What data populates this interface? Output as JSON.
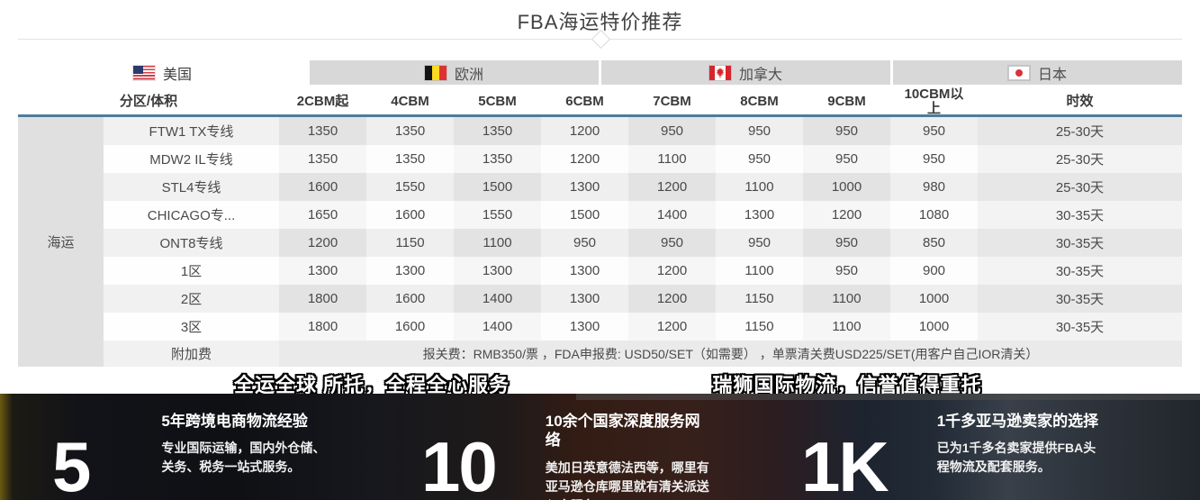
{
  "title": "FBA海运特价推荐",
  "colors": {
    "accent_blue": "#4d7d9c",
    "tab_inactive": "#d8d8d8",
    "group_cell_gray": "#e0e0e0",
    "band_background": "#14161c"
  },
  "tabs": [
    {
      "label": "美国",
      "flag": "us",
      "flag_name": "us-flag-icon",
      "active": true
    },
    {
      "label": "欧洲",
      "flag": "be",
      "flag_name": "belgium-flag-icon",
      "active": false
    },
    {
      "label": "加拿大",
      "flag": "ca",
      "flag_name": "canada-flag-icon",
      "active": false
    },
    {
      "label": "日本",
      "flag": "jp",
      "flag_name": "japan-flag-icon",
      "active": false
    }
  ],
  "table": {
    "group_label": "海运",
    "columns": [
      "分区/体积",
      "2CBM起",
      "4CBM",
      "5CBM",
      "6CBM",
      "7CBM",
      "8CBM",
      "9CBM",
      "10CBM以上",
      "时效"
    ],
    "rows": [
      {
        "label": "FTW1 TX专线",
        "prices": [
          "1350",
          "1350",
          "1350",
          "1200",
          "950",
          "950",
          "950",
          "950"
        ],
        "timing": "25-30天"
      },
      {
        "label": "MDW2 IL专线",
        "prices": [
          "1350",
          "1350",
          "1350",
          "1200",
          "1100",
          "950",
          "950",
          "950"
        ],
        "timing": "25-30天"
      },
      {
        "label": "STL4专线",
        "prices": [
          "1600",
          "1550",
          "1500",
          "1300",
          "1200",
          "1100",
          "1000",
          "980"
        ],
        "timing": "25-30天"
      },
      {
        "label": "CHICAGO专...",
        "prices": [
          "1650",
          "1600",
          "1550",
          "1500",
          "1400",
          "1300",
          "1200",
          "1080"
        ],
        "timing": "30-35天"
      },
      {
        "label": "ONT8专线",
        "prices": [
          "1200",
          "1150",
          "1100",
          "950",
          "950",
          "950",
          "950",
          "850"
        ],
        "timing": "30-35天"
      },
      {
        "label": "1区",
        "prices": [
          "1300",
          "1300",
          "1300",
          "1300",
          "1200",
          "1100",
          "950",
          "900"
        ],
        "timing": "30-35天"
      },
      {
        "label": "2区",
        "prices": [
          "1800",
          "1600",
          "1400",
          "1300",
          "1200",
          "1150",
          "1100",
          "1000"
        ],
        "timing": "30-35天"
      },
      {
        "label": "3区",
        "prices": [
          "1800",
          "1600",
          "1400",
          "1300",
          "1200",
          "1150",
          "1100",
          "1000"
        ],
        "timing": "30-35天"
      }
    ],
    "surcharge": {
      "label": "附加费",
      "text": "报关费：RMB350/票 ，FDA申报费: USD50/SET（如需要） ，单票清关费USD225/SET(用客户自己IOR清关）"
    }
  },
  "slogans": {
    "left": "全运全球 所托，全程全心服务",
    "right": "瑞狮国际物流，信誉值得重托"
  },
  "stats": [
    {
      "number": "5",
      "heading": "5年跨境电商物流经验",
      "body": "专业国际运输，国内外仓储、关务、税务一站式服务。"
    },
    {
      "number": "10",
      "heading": "10余个国家深度服务网络",
      "body": "美加日英意德法西等，哪里有亚马逊仓库哪里就有清关派送入仓服务。"
    },
    {
      "number": "1K",
      "heading": "1千多亚马逊卖家的选择",
      "body": "已为1千多名卖家提供FBA头程物流及配套服务。"
    }
  ]
}
